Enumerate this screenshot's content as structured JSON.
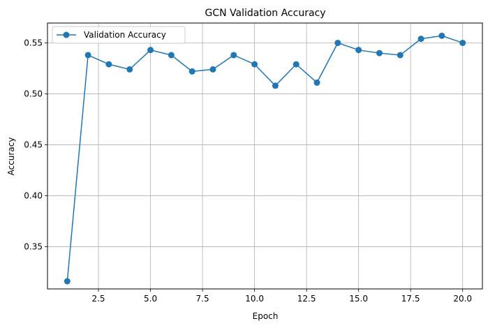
{
  "chart_data": {
    "type": "line",
    "title": "GCN Validation Accuracy",
    "xlabel": "Epoch",
    "ylabel": "Accuracy",
    "xlim": [
      0.05,
      20.95
    ],
    "ylim": [
      0.3085,
      0.5695
    ],
    "x_ticks": [
      2.5,
      5.0,
      7.5,
      10.0,
      12.5,
      15.0,
      17.5,
      20.0
    ],
    "x_tick_labels": [
      "2.5",
      "5.0",
      "7.5",
      "10.0",
      "12.5",
      "15.0",
      "17.5",
      "20.0"
    ],
    "y_ticks": [
      0.35,
      0.4,
      0.45,
      0.5,
      0.55
    ],
    "y_tick_labels": [
      "0.35",
      "0.40",
      "0.45",
      "0.50",
      "0.55"
    ],
    "grid": true,
    "legend_position": "top-left",
    "series": [
      {
        "name": "Validation Accuracy",
        "color": "#1f77b4",
        "marker": "circle",
        "x": [
          1,
          2,
          3,
          4,
          5,
          6,
          7,
          8,
          9,
          10,
          11,
          12,
          13,
          14,
          15,
          16,
          17,
          18,
          19,
          20
        ],
        "y": [
          0.316,
          0.538,
          0.529,
          0.524,
          0.543,
          0.538,
          0.522,
          0.524,
          0.538,
          0.529,
          0.508,
          0.529,
          0.511,
          0.55,
          0.543,
          0.54,
          0.538,
          0.554,
          0.557,
          0.55
        ]
      }
    ]
  }
}
